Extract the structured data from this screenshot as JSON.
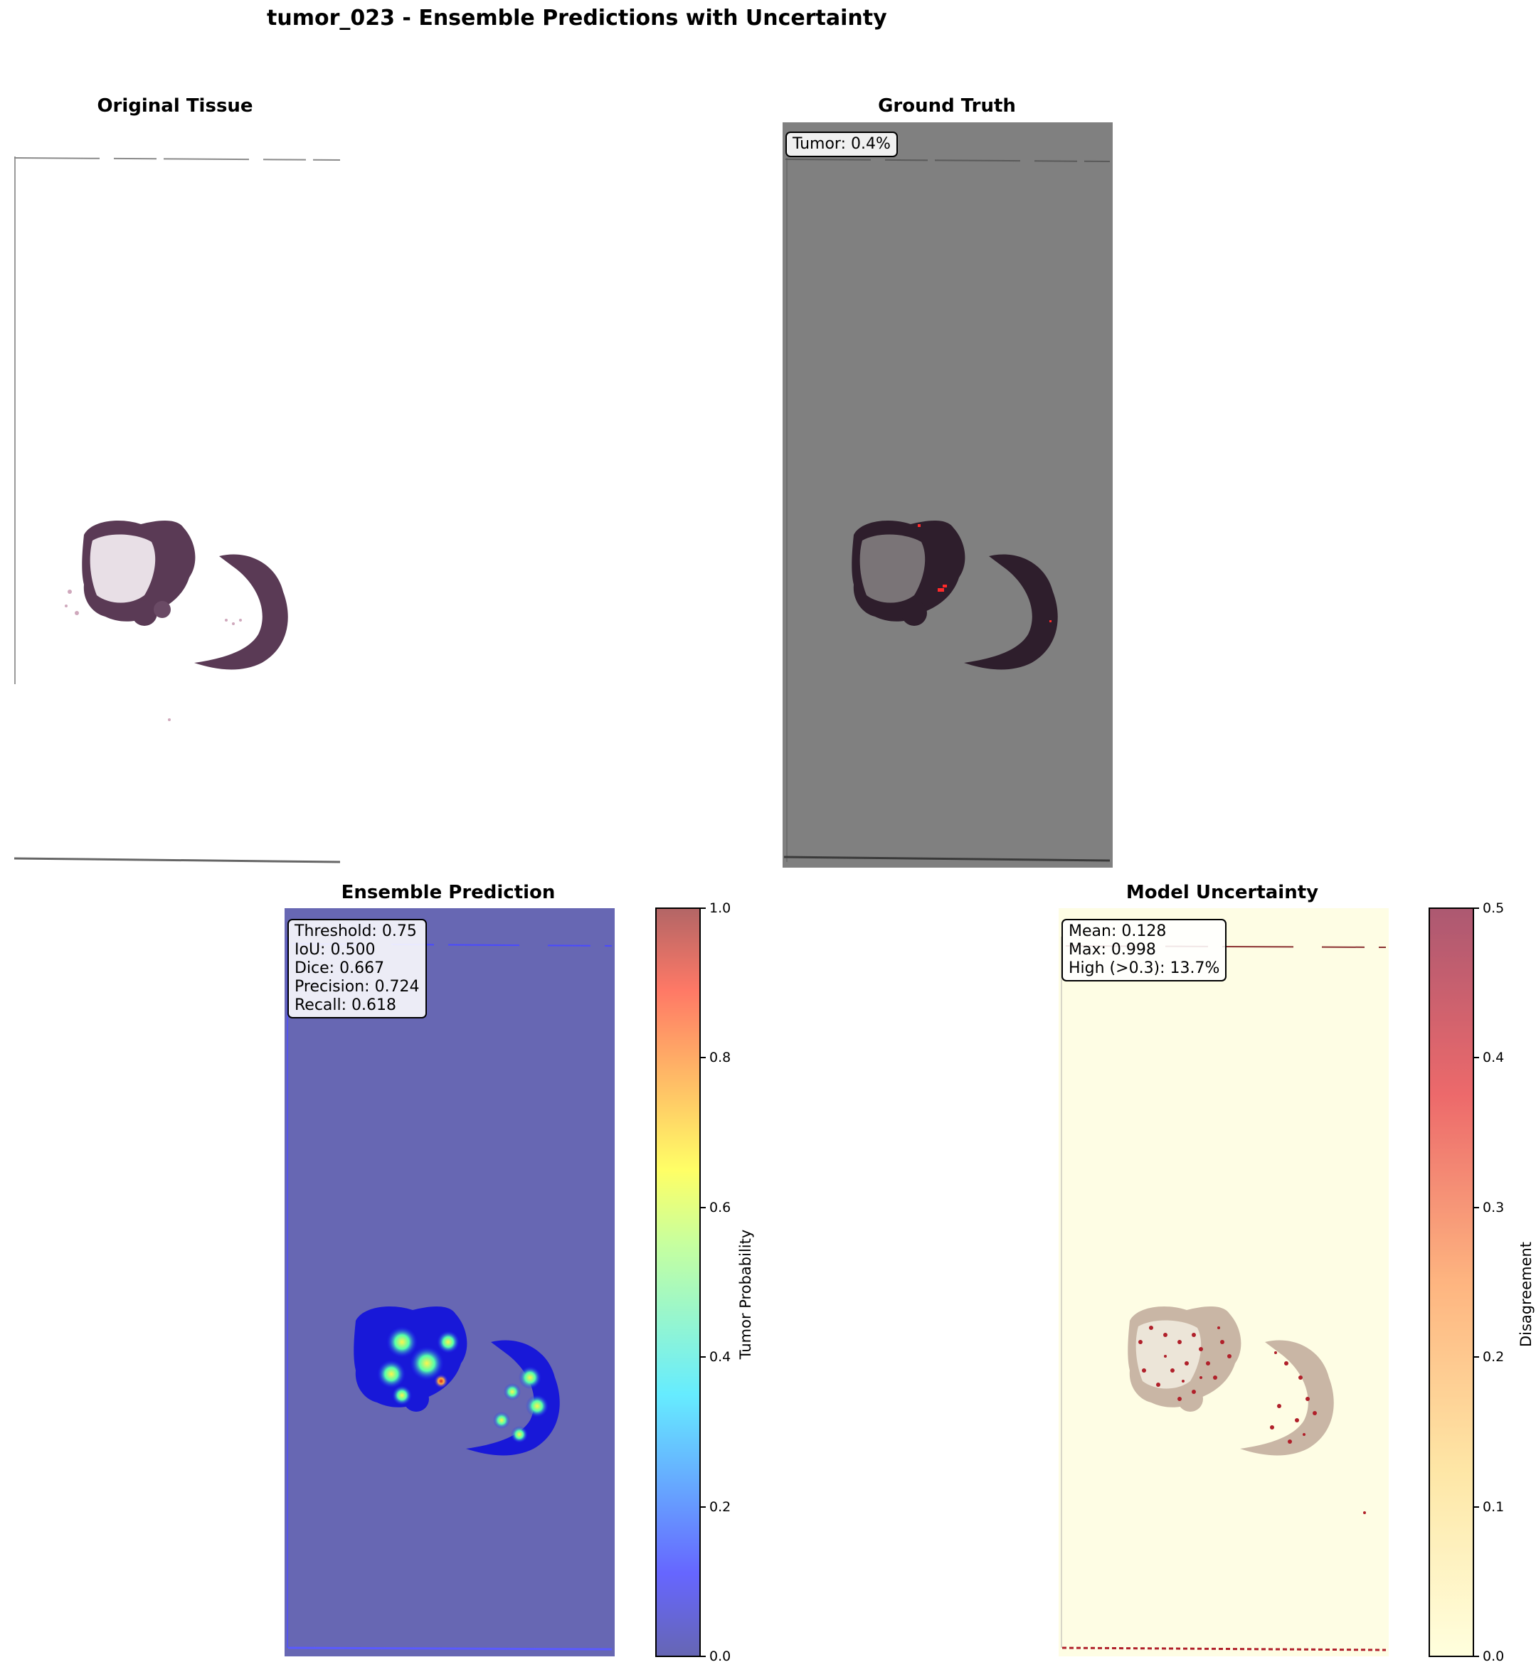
{
  "figure": {
    "title": "tumor_023 - Ensemble Predictions with Uncertainty"
  },
  "panels": {
    "original": {
      "title": "Original Tissue"
    },
    "ground_truth": {
      "title": "Ground Truth",
      "stats": [
        "Tumor: 0.4%"
      ]
    },
    "ensemble": {
      "title": "Ensemble Prediction",
      "stats": [
        "Threshold: 0.75",
        "IoU: 0.500",
        "Dice: 0.667",
        "Precision: 0.724",
        "Recall: 0.618"
      ],
      "colorbar": {
        "label": "Tumor Probability",
        "ticks": [
          "0.0",
          "0.2",
          "0.4",
          "0.6",
          "0.8",
          "1.0"
        ],
        "range": [
          0,
          1
        ],
        "colormap": "jet"
      }
    },
    "uncertainty": {
      "title": "Model Uncertainty",
      "stats": [
        "Mean: 0.128",
        "Max: 0.998",
        "High (>0.3): 13.7%"
      ],
      "colorbar": {
        "label": "Disagreement",
        "ticks": [
          "0.0",
          "0.1",
          "0.2",
          "0.3",
          "0.4",
          "0.5"
        ],
        "range": [
          0,
          0.5
        ],
        "colormap": "YlOrRd"
      }
    }
  },
  "chart_data": [
    {
      "type": "heatmap",
      "title": "Original Tissue",
      "content": "H&E tissue section image"
    },
    {
      "type": "heatmap",
      "title": "Ground Truth",
      "annotation": "Tumor: 0.4%",
      "tumor_fraction_percent": 0.4
    },
    {
      "type": "heatmap",
      "title": "Ensemble Prediction",
      "colorbar_label": "Tumor Probability",
      "vmin": 0.0,
      "vmax": 1.0,
      "metrics": {
        "threshold": 0.75,
        "iou": 0.5,
        "dice": 0.667,
        "precision": 0.724,
        "recall": 0.618
      }
    },
    {
      "type": "heatmap",
      "title": "Model Uncertainty",
      "colorbar_label": "Disagreement",
      "vmin": 0.0,
      "vmax": 0.5,
      "metrics": {
        "mean": 0.128,
        "max": 0.998,
        "high_fraction_percent": 13.7,
        "high_threshold": 0.3
      }
    }
  ],
  "colors": {
    "background": "#ffffff",
    "tissue_dark": "#5a3a55",
    "tissue_light": "#e8dfe6",
    "gt_background": "#808080",
    "gt_tumor": "#ff2a2a",
    "pred_background": "#6767b3",
    "unc_background": "#fefde4",
    "unc_high": "#b0202a"
  }
}
